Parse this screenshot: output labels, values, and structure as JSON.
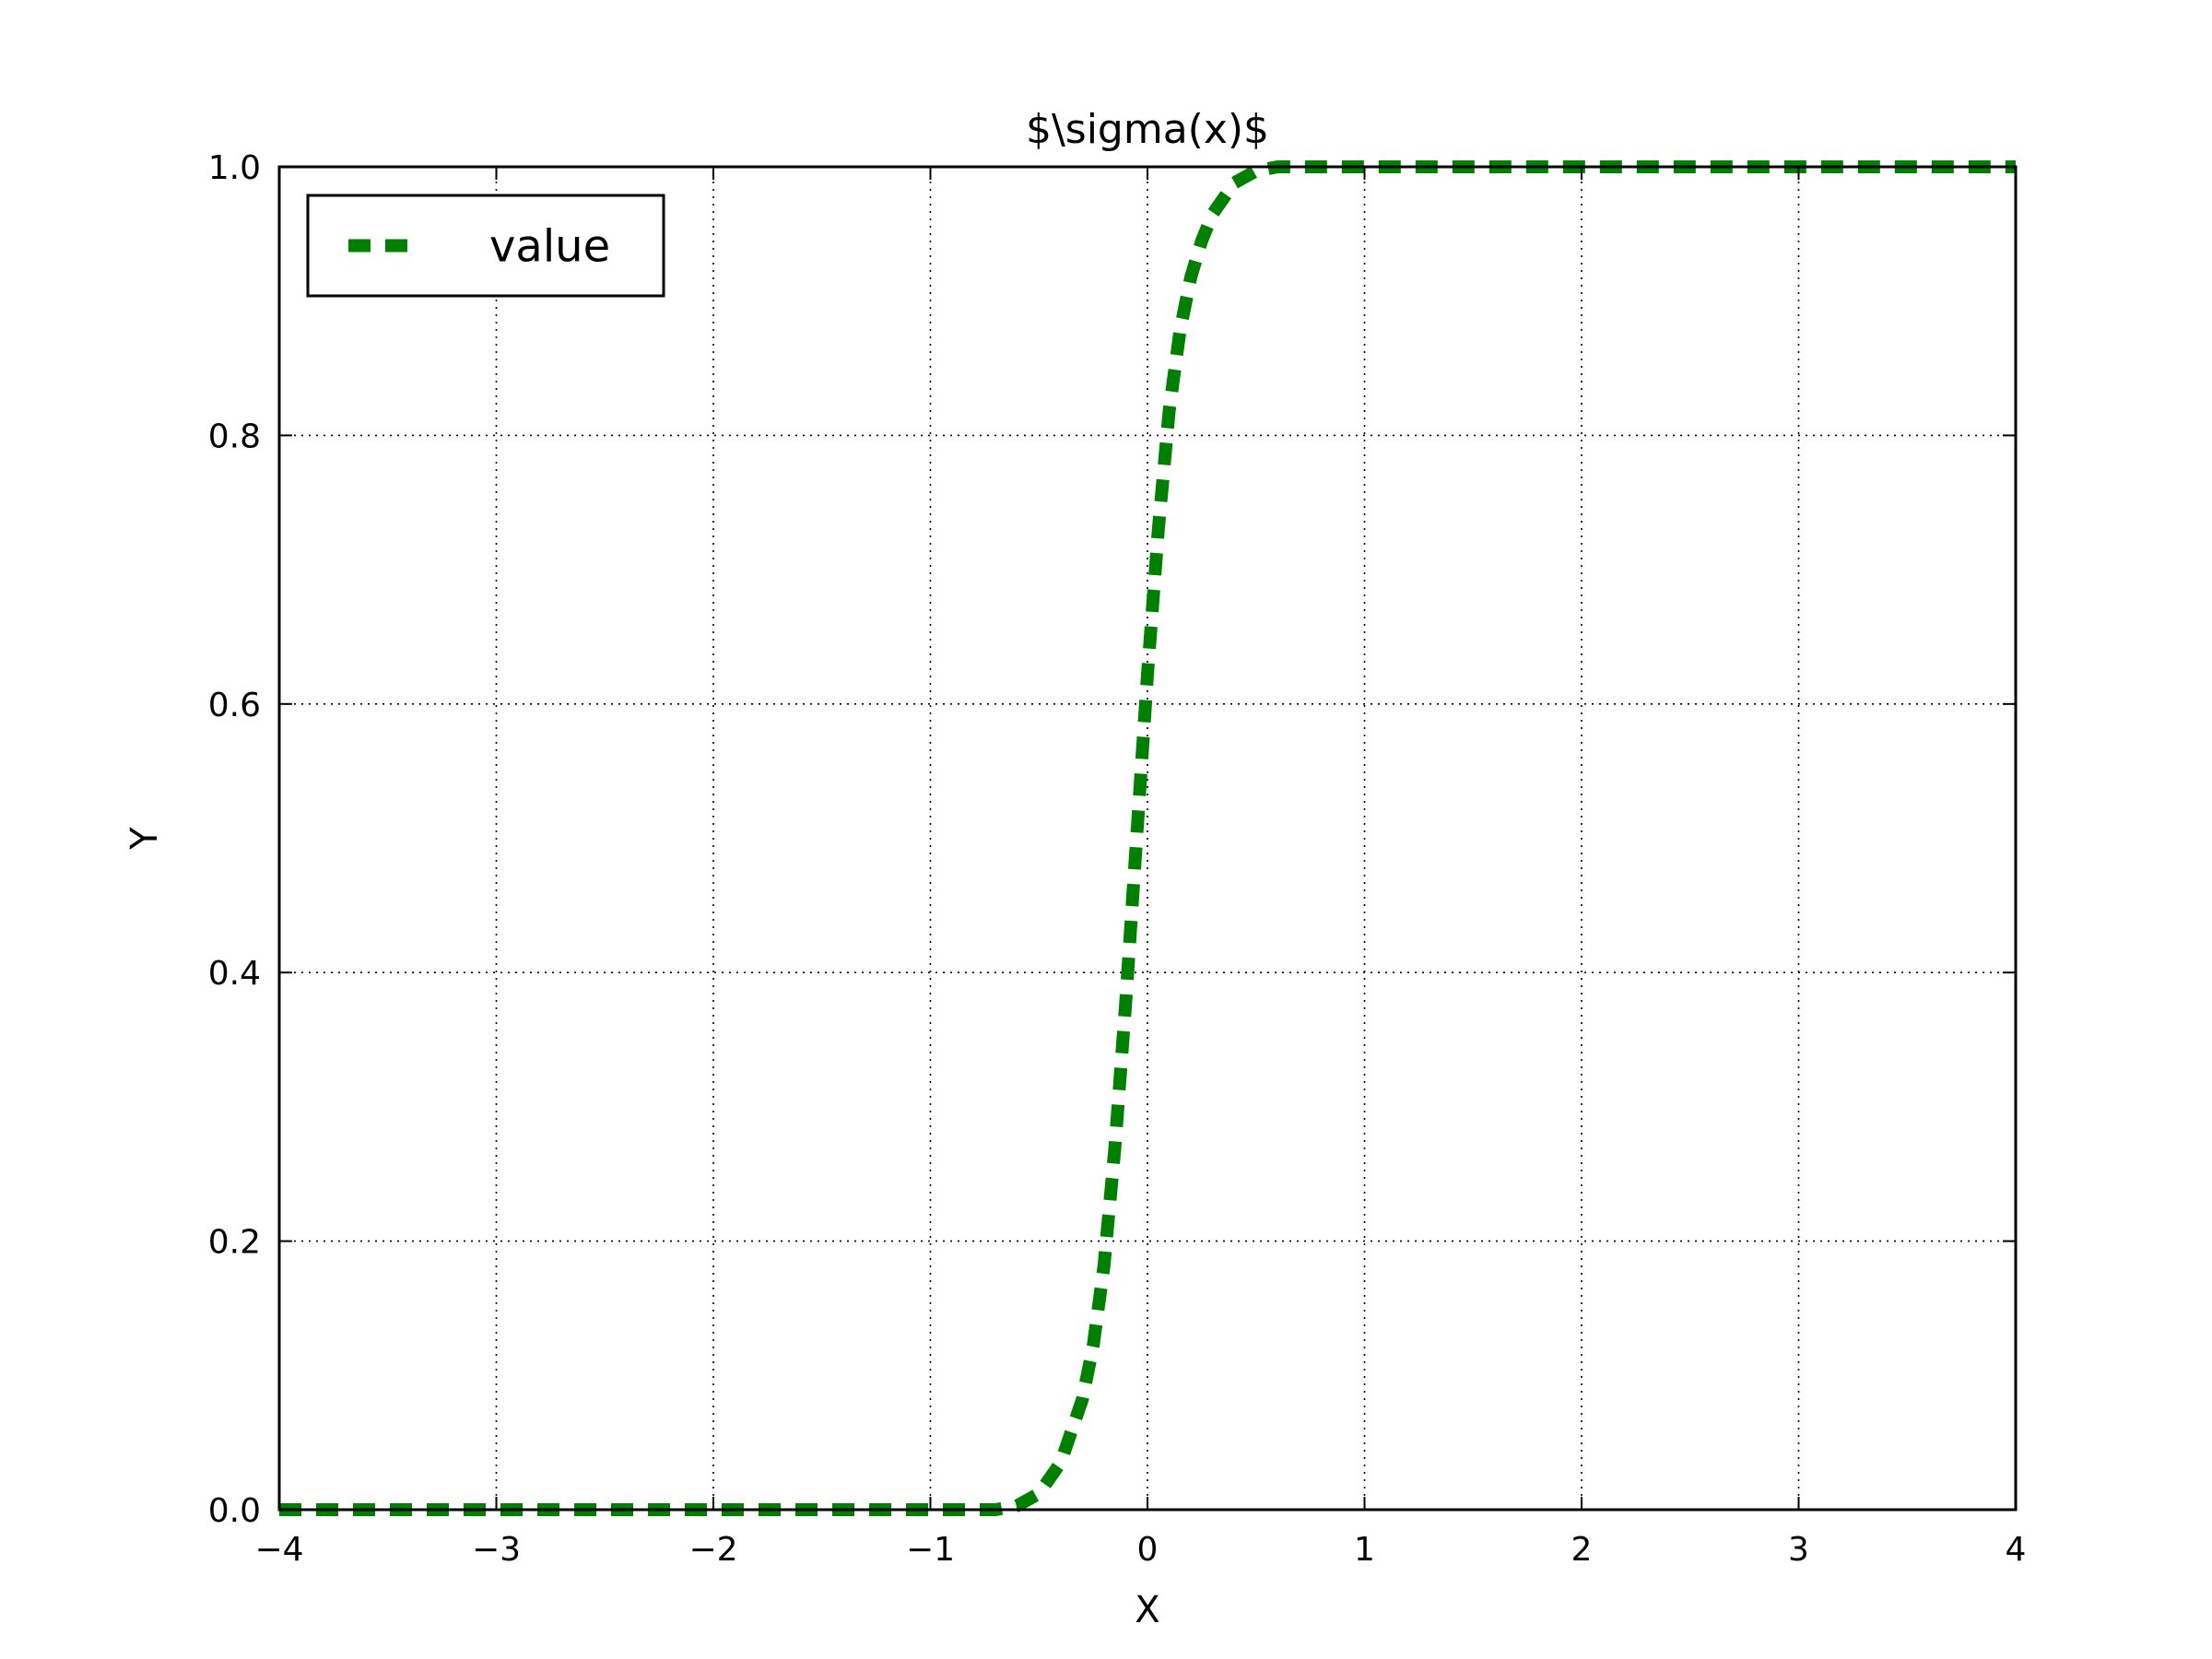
{
  "chart_data": {
    "type": "line",
    "title": "$\\sigma(x)$",
    "xlabel": "X",
    "ylabel": "Y",
    "xlim": [
      -4,
      4
    ],
    "ylim": [
      0,
      1.0
    ],
    "xticks": [
      -4,
      -3,
      -2,
      -1,
      0,
      1,
      2,
      3,
      4
    ],
    "xtick_labels": [
      "−4",
      "−3",
      "−2",
      "−1",
      "0",
      "1",
      "2",
      "3",
      "4"
    ],
    "yticks": [
      0,
      0.2,
      0.4,
      0.6,
      0.8,
      1.0
    ],
    "ytick_labels": [
      "0.0",
      "0.2",
      "0.4",
      "0.6",
      "0.8",
      "1.0"
    ],
    "grid": true,
    "legend_position": "upper-left",
    "series": [
      {
        "name": "value",
        "color": "#008000",
        "line_style": "dashed",
        "x": [
          -4.0,
          -3.5,
          -3.0,
          -2.5,
          -2.0,
          -1.5,
          -1.0,
          -0.8,
          -0.7,
          -0.6,
          -0.5,
          -0.4,
          -0.3,
          -0.25,
          -0.2,
          -0.15,
          -0.1,
          -0.05,
          0.0,
          0.05,
          0.1,
          0.15,
          0.2,
          0.25,
          0.3,
          0.4,
          0.5,
          0.6,
          0.7,
          0.8,
          1.0,
          1.5,
          2.0,
          2.5,
          3.0,
          3.5,
          4.0
        ],
        "y": [
          0.0,
          0.0,
          0.0,
          0.0,
          0.0,
          0.0,
          0.0,
          0.0,
          0.0,
          0.003,
          0.012,
          0.035,
          0.082,
          0.122,
          0.182,
          0.27,
          0.378,
          0.5,
          0.622,
          0.73,
          0.818,
          0.878,
          0.918,
          0.945,
          0.965,
          0.988,
          0.997,
          1.0,
          1.0,
          1.0,
          1.0,
          1.0,
          1.0,
          1.0,
          1.0,
          1.0,
          1.0
        ]
      }
    ]
  }
}
